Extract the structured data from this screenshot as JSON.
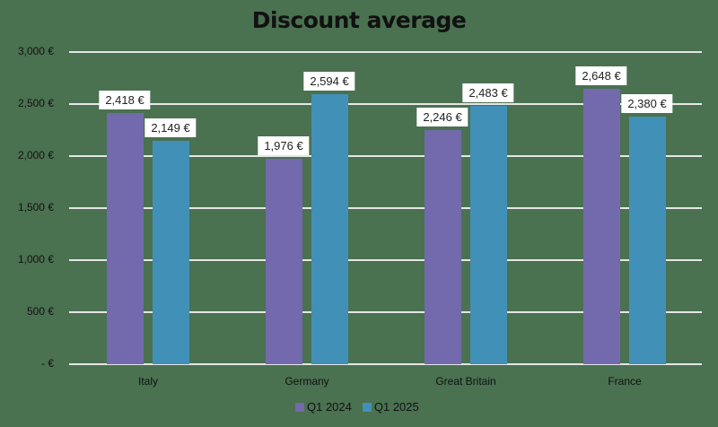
{
  "chart_data": {
    "type": "bar",
    "title": "Discount average",
    "xlabel": "",
    "ylabel": "",
    "ylim": [
      0,
      3000
    ],
    "yticks": [
      "3,000 €",
      "2,500 €",
      "2,000 €",
      "1,500 €",
      "1,000 €",
      "500 €",
      "-  €"
    ],
    "ytick_values": [
      3000,
      2500,
      2000,
      1500,
      1000,
      500,
      0
    ],
    "grid": true,
    "legend_position": "bottom",
    "categories": [
      "Italy",
      "Germany",
      "Great Britain",
      "France"
    ],
    "series": [
      {
        "name": "Q1 2024",
        "color": "#7369ad",
        "values": [
          2418,
          1976,
          2246,
          2648
        ],
        "labels": [
          "2,418 €",
          "1,976 €",
          "2,246 €",
          "2,648 €"
        ]
      },
      {
        "name": "Q1 2025",
        "color": "#4190b8",
        "values": [
          2149,
          2594,
          2483,
          2380
        ],
        "labels": [
          "2,149 €",
          "2,594 €",
          "2,483 €",
          "2,380 €"
        ]
      }
    ]
  }
}
